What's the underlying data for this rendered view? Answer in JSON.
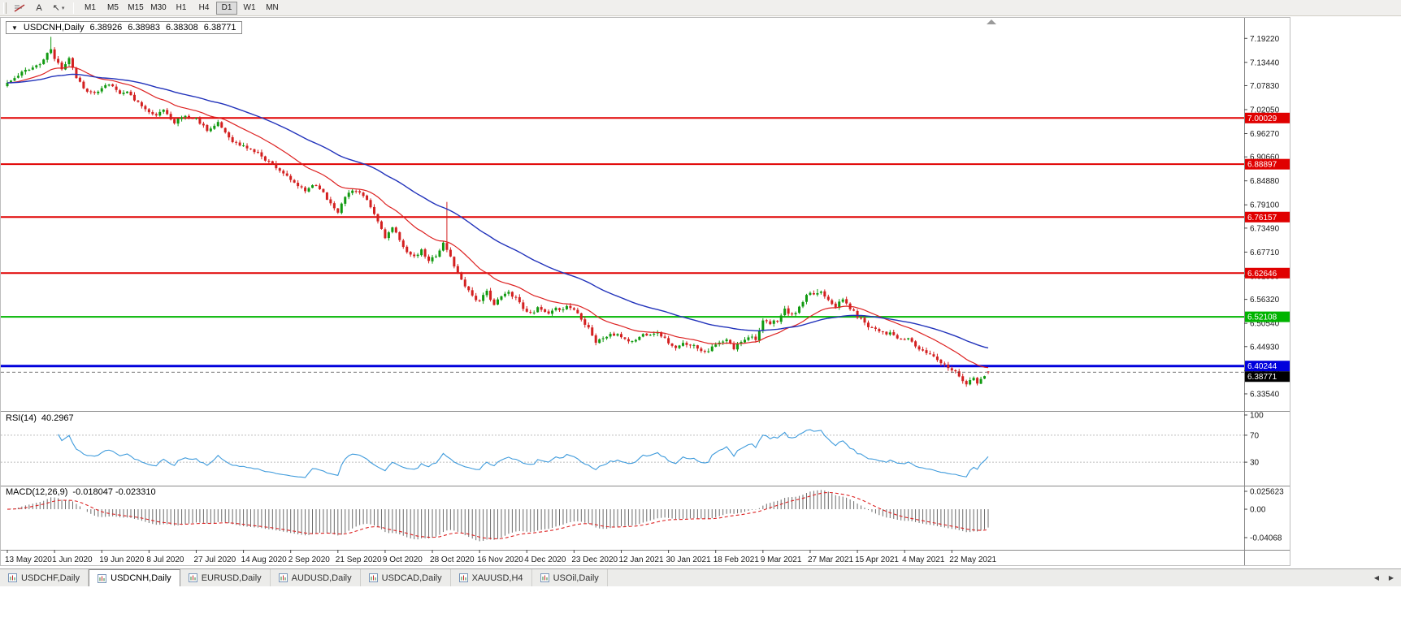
{
  "toolbar": {
    "tools": {
      "text_glyph": "A",
      "arrow_glyph": "↖",
      "dropdown_glyph": "▾"
    },
    "timeframes": [
      {
        "label": "M1"
      },
      {
        "label": "M5"
      },
      {
        "label": "M15"
      },
      {
        "label": "M30"
      },
      {
        "label": "H1"
      },
      {
        "label": "H4"
      },
      {
        "label": "D1",
        "active": true
      },
      {
        "label": "W1"
      },
      {
        "label": "MN"
      }
    ]
  },
  "chart_data": {
    "type": "candlestick",
    "symbol": "USDCNH",
    "period": "Daily",
    "collapse_glyph": "▼",
    "info": {
      "symbol_period": "USDCNH,Daily",
      "open": "6.38926",
      "high": "6.38983",
      "low": "6.38308",
      "close": "6.38771"
    },
    "current_price": 6.38771,
    "price_axis": {
      "top": 7.226,
      "bottom": 6.306
    },
    "y_axis_ticks": [
      "7.19220",
      "7.13440",
      "7.07830",
      "7.02050",
      "6.96270",
      "6.90660",
      "6.84880",
      "6.79100",
      "6.73490",
      "6.67710",
      "6.61930",
      "6.56320",
      "6.50540",
      "6.44930",
      "6.39150",
      "6.33540"
    ],
    "x_axis_ticks": [
      {
        "label": "13 May 2020",
        "day": 0
      },
      {
        "label": "1 Jun 2020",
        "day": 13
      },
      {
        "label": "19 Jun 2020",
        "day": 26
      },
      {
        "label": "8 Jul 2020",
        "day": 39
      },
      {
        "label": "27 Jul 2020",
        "day": 52
      },
      {
        "label": "14 Aug 2020",
        "day": 65
      },
      {
        "label": "2 Sep 2020",
        "day": 78
      },
      {
        "label": "21 Sep 2020",
        "day": 91
      },
      {
        "label": "9 Oct 2020",
        "day": 104
      },
      {
        "label": "28 Oct 2020",
        "day": 117
      },
      {
        "label": "16 Nov 2020",
        "day": 130
      },
      {
        "label": "4 Dec 2020",
        "day": 143
      },
      {
        "label": "23 Dec 2020",
        "day": 156
      },
      {
        "label": "12 Jan 2021",
        "day": 169
      },
      {
        "label": "30 Jan 2021",
        "day": 182
      },
      {
        "label": "18 Feb 2021",
        "day": 195
      },
      {
        "label": "9 Mar 2021",
        "day": 208
      },
      {
        "label": "27 Mar 2021",
        "day": 221
      },
      {
        "label": "15 Apr 2021",
        "day": 234
      },
      {
        "label": "4 May 2021",
        "day": 247
      },
      {
        "label": "22 May 2021",
        "day": 260
      }
    ],
    "bar_count": 271,
    "horizontal_lines": [
      {
        "price": 7.00029,
        "label": "7.00029",
        "color": "#e00000",
        "width": 2
      },
      {
        "price": 6.88897,
        "label": "6.88897",
        "color": "#e00000",
        "width": 2
      },
      {
        "price": 6.76157,
        "label": "6.76157",
        "color": "#e00000",
        "width": 2
      },
      {
        "price": 6.62646,
        "label": "6.62646",
        "color": "#e00000",
        "width": 2
      },
      {
        "price": 6.52108,
        "label": "6.52108",
        "color": "#00b400",
        "width": 2
      },
      {
        "price": 6.40244,
        "label": "6.40244",
        "color": "#0000dc",
        "width": 3
      }
    ],
    "price_path": [
      [
        0,
        7.085
      ],
      [
        3,
        7.1
      ],
      [
        6,
        7.12
      ],
      [
        9,
        7.13
      ],
      [
        12,
        7.165
      ],
      [
        13,
        7.14
      ],
      [
        15,
        7.12
      ],
      [
        17,
        7.15
      ],
      [
        19,
        7.1
      ],
      [
        22,
        7.065
      ],
      [
        25,
        7.06
      ],
      [
        28,
        7.08
      ],
      [
        31,
        7.065
      ],
      [
        34,
        7.055
      ],
      [
        37,
        7.03
      ],
      [
        40,
        7.005
      ],
      [
        43,
        7.015
      ],
      [
        46,
        6.995
      ],
      [
        49,
        7.005
      ],
      [
        52,
        6.998
      ],
      [
        55,
        6.975
      ],
      [
        58,
        6.985
      ],
      [
        61,
        6.955
      ],
      [
        64,
        6.935
      ],
      [
        67,
        6.925
      ],
      [
        70,
        6.91
      ],
      [
        73,
        6.89
      ],
      [
        76,
        6.87
      ],
      [
        78,
        6.845
      ],
      [
        80,
        6.835
      ],
      [
        82,
        6.82
      ],
      [
        84,
        6.84
      ],
      [
        86,
        6.835
      ],
      [
        88,
        6.805
      ],
      [
        91,
        6.78
      ],
      [
        93,
        6.81
      ],
      [
        95,
        6.83
      ],
      [
        97,
        6.82
      ],
      [
        99,
        6.795
      ],
      [
        101,
        6.765
      ],
      [
        104,
        6.715
      ],
      [
        106,
        6.735
      ],
      [
        108,
        6.7
      ],
      [
        110,
        6.682
      ],
      [
        112,
        6.662
      ],
      [
        114,
        6.678
      ],
      [
        116,
        6.652
      ],
      [
        118,
        6.67
      ],
      [
        120,
        6.7
      ],
      [
        122,
        6.665
      ],
      [
        124,
        6.625
      ],
      [
        126,
        6.6
      ],
      [
        128,
        6.575
      ],
      [
        130,
        6.558
      ],
      [
        132,
        6.578
      ],
      [
        134,
        6.552
      ],
      [
        136,
        6.568
      ],
      [
        138,
        6.578
      ],
      [
        140,
        6.57
      ],
      [
        143,
        6.532
      ],
      [
        146,
        6.542
      ],
      [
        149,
        6.523
      ],
      [
        152,
        6.538
      ],
      [
        154,
        6.548
      ],
      [
        156,
        6.54
      ],
      [
        158,
        6.52
      ],
      [
        160,
        6.5
      ],
      [
        162,
        6.462
      ],
      [
        164,
        6.47
      ],
      [
        166,
        6.48
      ],
      [
        169,
        6.472
      ],
      [
        172,
        6.462
      ],
      [
        175,
        6.478
      ],
      [
        178,
        6.488
      ],
      [
        180,
        6.478
      ],
      [
        182,
        6.46
      ],
      [
        184,
        6.442
      ],
      [
        186,
        6.452
      ],
      [
        188,
        6.458
      ],
      [
        190,
        6.448
      ],
      [
        192,
        6.442
      ],
      [
        195,
        6.452
      ],
      [
        198,
        6.462
      ],
      [
        200,
        6.442
      ],
      [
        202,
        6.462
      ],
      [
        204,
        6.478
      ],
      [
        206,
        6.472
      ],
      [
        208,
        6.508
      ],
      [
        210,
        6.5
      ],
      [
        212,
        6.512
      ],
      [
        214,
        6.538
      ],
      [
        216,
        6.522
      ],
      [
        218,
        6.542
      ],
      [
        220,
        6.568
      ],
      [
        222,
        6.572
      ],
      [
        224,
        6.582
      ],
      [
        226,
        6.568
      ],
      [
        228,
        6.552
      ],
      [
        230,
        6.562
      ],
      [
        232,
        6.542
      ],
      [
        234,
        6.522
      ],
      [
        237,
        6.502
      ],
      [
        240,
        6.492
      ],
      [
        243,
        6.482
      ],
      [
        246,
        6.462
      ],
      [
        248,
        6.468
      ],
      [
        250,
        6.452
      ],
      [
        252,
        6.435
      ],
      [
        254,
        6.432
      ],
      [
        256,
        6.422
      ],
      [
        258,
        6.408
      ],
      [
        260,
        6.4
      ],
      [
        262,
        6.382
      ],
      [
        264,
        6.362
      ],
      [
        266,
        6.372
      ],
      [
        267,
        6.358
      ],
      [
        268,
        6.368
      ],
      [
        269,
        6.378
      ],
      [
        270,
        6.38771
      ]
    ],
    "wick_spikes": [
      {
        "day": 12,
        "high": 7.196
      },
      {
        "day": 121,
        "high": 6.798
      },
      {
        "day": 223,
        "high": 6.588
      }
    ],
    "colors": {
      "bull": "#119a11",
      "bear": "#d32020",
      "background": "#ffffff"
    },
    "ma_fast": {
      "period": 20,
      "color": "#dd2222"
    },
    "ma_slow": {
      "period": 55,
      "color": "#2233bb"
    },
    "indicators": {
      "rsi": {
        "name": "RSI(14)",
        "value": "40.2967",
        "period": 14,
        "color": "#3f9bdc",
        "ticks": [
          "100",
          "70",
          "30"
        ],
        "levels": [
          70,
          30
        ]
      },
      "macd": {
        "name": "MACD(12,26,9)",
        "values": "-0.018047 -0.023310",
        "fast": 12,
        "slow": 26,
        "signal_period": 9,
        "hist_color": "#6b6b6b",
        "signal_color": "#dd2222",
        "ticks": [
          "0.025623",
          "0.00",
          "-0.04068"
        ]
      }
    }
  },
  "window_tabs": {
    "tabs": [
      {
        "label": "USDCHF,Daily"
      },
      {
        "label": "USDCNH,Daily",
        "active": true
      },
      {
        "label": "EURUSD,Daily"
      },
      {
        "label": "AUDUSD,Daily"
      },
      {
        "label": "USDCAD,Daily"
      },
      {
        "label": "XAUUSD,H4"
      },
      {
        "label": "USOil,Daily"
      }
    ],
    "scroll_left_glyph": "◀",
    "scroll_right_glyph": "▶"
  }
}
